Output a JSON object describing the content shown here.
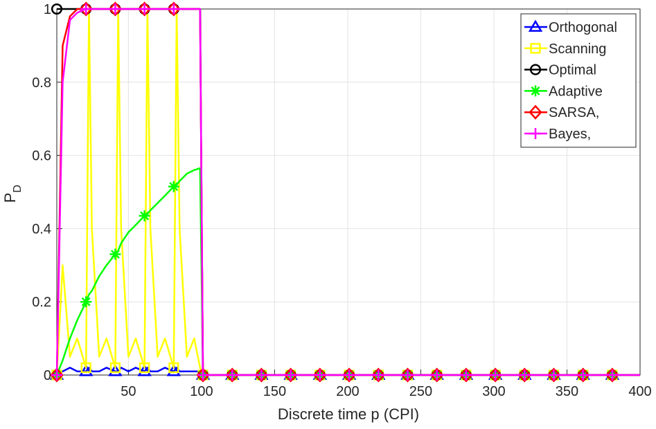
{
  "chart_data": {
    "type": "line",
    "xlabel": "Discrete time p (CPI)",
    "ylabel": "P",
    "ylabel_subscript": "D",
    "x": [
      1,
      5,
      10,
      15,
      21,
      23,
      25,
      30,
      35,
      41,
      43,
      45,
      50,
      55,
      61,
      63,
      65,
      70,
      75,
      81,
      83,
      85,
      90,
      95,
      99,
      101,
      121,
      141,
      161,
      181,
      201,
      221,
      241,
      261,
      281,
      301,
      321,
      341,
      361,
      381,
      400
    ],
    "xlim": [
      1,
      400
    ],
    "ylim": [
      0,
      1
    ],
    "xticks": [
      50,
      100,
      150,
      200,
      250,
      300,
      350,
      400
    ],
    "yticks": [
      0,
      0.2,
      0.4,
      0.6,
      0.8,
      1
    ],
    "grid": true,
    "legend": "upper right",
    "series": [
      {
        "name": "Orthogonal",
        "color": "#0000ff",
        "marker": "triangle",
        "values": [
          0,
          0.01,
          0.02,
          0.01,
          0.01,
          0.02,
          0.01,
          0.01,
          0.02,
          0.01,
          0.01,
          0.02,
          0.01,
          0.02,
          0.01,
          0.02,
          0.01,
          0.01,
          0.02,
          0.01,
          0.02,
          0.01,
          0.01,
          0.01,
          0.01,
          0,
          0,
          0,
          0,
          0,
          0,
          0,
          0,
          0,
          0,
          0,
          0,
          0,
          0,
          0,
          0
        ]
      },
      {
        "name": "Scanning",
        "color": "#ffff00",
        "marker": "square",
        "values": [
          0,
          0.3,
          0.05,
          0.1,
          0.02,
          1,
          0.4,
          0.05,
          0.1,
          0.02,
          1,
          0.4,
          0.05,
          0.1,
          0.02,
          1,
          0.4,
          0.05,
          0.1,
          0.02,
          1,
          0.4,
          0.05,
          0.1,
          0.02,
          0,
          0,
          0,
          0,
          0,
          0,
          0,
          0,
          0,
          0,
          0,
          0,
          0,
          0,
          0,
          0
        ]
      },
      {
        "name": "Optimal",
        "color": "#000000",
        "marker": "circle",
        "values": [
          1,
          1,
          1,
          1,
          1,
          1,
          1,
          1,
          1,
          1,
          1,
          1,
          1,
          1,
          1,
          1,
          1,
          1,
          1,
          1,
          1,
          1,
          1,
          1,
          1,
          0,
          0,
          0,
          0,
          0,
          0,
          0,
          0,
          0,
          0,
          0,
          0,
          0,
          0,
          0,
          0
        ]
      },
      {
        "name": "Adaptive",
        "color": "#00ff00",
        "marker": "asterisk",
        "values": [
          0,
          0.04,
          0.1,
          0.15,
          0.2,
          0.22,
          0.23,
          0.27,
          0.3,
          0.33,
          0.34,
          0.36,
          0.39,
          0.41,
          0.435,
          0.44,
          0.45,
          0.47,
          0.49,
          0.515,
          0.52,
          0.53,
          0.55,
          0.56,
          0.565,
          0,
          0,
          0,
          0,
          0,
          0,
          0,
          0,
          0,
          0,
          0,
          0,
          0,
          0,
          0,
          0
        ]
      },
      {
        "name": "SARSA,",
        "color": "#ff0000",
        "marker": "diamond",
        "values": [
          0,
          0.9,
          0.98,
          1,
          1,
          1,
          1,
          1,
          1,
          1,
          1,
          1,
          1,
          1,
          1,
          1,
          1,
          1,
          1,
          1,
          1,
          1,
          1,
          1,
          1,
          0,
          0,
          0,
          0,
          0,
          0,
          0,
          0,
          0,
          0,
          0,
          0,
          0,
          0,
          0,
          0
        ]
      },
      {
        "name": "Bayes,",
        "color": "#ff00ff",
        "marker": "plus",
        "values": [
          0,
          0.8,
          0.97,
          0.99,
          1,
          1,
          1,
          1,
          1,
          1,
          1,
          1,
          1,
          1,
          1,
          1,
          1,
          1,
          1,
          1,
          1,
          1,
          1,
          1,
          1,
          0,
          0,
          0,
          0,
          0,
          0,
          0,
          0,
          0,
          0,
          0,
          0,
          0,
          0,
          0,
          0
        ]
      }
    ]
  }
}
